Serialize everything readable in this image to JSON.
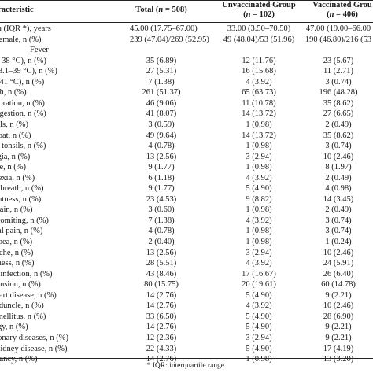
{
  "header": {
    "characteristic": "aracteristic",
    "total": "Total (n = 508)",
    "unvaccinated_line1": "Unvaccinated Group",
    "unvaccinated_line2": "(n = 102)",
    "vaccinated_line1": "Vaccinated Grou",
    "vaccinated_line2": "(n = 406)"
  },
  "rows": [
    {
      "label": "ian (IQR *), years",
      "total": "45.00 (17.75–67.00)",
      "unvacc": "33.00 (3.50–70.50)",
      "vacc": "47.00 (19.00–66.00"
    },
    {
      "label": "f female, n (%)",
      "total": "239 (47.04)/269 (52.95)",
      "unvacc": "49 (48.04)/53 (51.96)",
      "vacc": "190 (46.80)/216 (53"
    },
    {
      "label": "Fever",
      "total": "",
      "unvacc": "",
      "vacc": ""
    },
    {
      "label": ".3–38 °C), n (%)",
      "total": "35 (6.89)",
      "unvacc": "12 (11.76)",
      "vacc": "23 (5.67)"
    },
    {
      "label": "(38.1–39 °C), n (%)",
      "total": "27 (5.31)",
      "unvacc": "16 (15.68)",
      "vacc": "11 (2.71)"
    },
    {
      "label": "9–41 °C), n (%)",
      "total": "7 (1.38)",
      "unvacc": "4 (3.92)",
      "vacc": "3 (0.74)"
    },
    {
      "label": "ugh, n (%)",
      "total": "261 (51.37)",
      "unvacc": "65 (63.73)",
      "vacc": "196 (48.28)"
    },
    {
      "label": "ecoration, n (%)",
      "total": "46 (9.06)",
      "unvacc": "11 (10.78)",
      "vacc": "35 (8.62)"
    },
    {
      "label": "ongestion, n (%)",
      "total": "41 (8.07)",
      "unvacc": "14 (13.72)",
      "vacc": "27 (6.65)"
    },
    {
      "label": "hills, n (%)",
      "total": "3 (0.59)",
      "unvacc": "1 (0.98)",
      "vacc": "2 (0.49)"
    },
    {
      "label": "hroat, n (%)",
      "total": "49 (9.64)",
      "unvacc": "14 (13.72)",
      "vacc": "35 (8.62)"
    },
    {
      "label": "on tonsils, n (%)",
      "total": "4 (0.78)",
      "unvacc": "1 (0.98)",
      "vacc": "3 (0.74)"
    },
    {
      "label": "algia, n (%)",
      "total": "13 (2.56)",
      "unvacc": "3 (2.94)",
      "vacc": "10 (2.46)"
    },
    {
      "label": "gue, n (%)",
      "total": "9 (1.77)",
      "unvacc": "1 (0.98)",
      "vacc": "8 (1.97)"
    },
    {
      "label": "orexia, n (%)",
      "total": "6 (1.18)",
      "unvacc": "4 (3.92)",
      "vacc": "2 (0.49)"
    },
    {
      "label": "of breath, n (%)",
      "total": "9 (1.77)",
      "unvacc": "5 (4.90)",
      "vacc": "4 (0.98)"
    },
    {
      "label": "ightness, n (%)",
      "total": "23 (4.53)",
      "unvacc": "9 (8.82)",
      "vacc": "14 (3.45)"
    },
    {
      "label": "t pain, n (%)",
      "total": "3 (0.60)",
      "unvacc": "1 (0.98)",
      "vacc": "2 (0.49)"
    },
    {
      "label": "r vomiting, n (%)",
      "total": "7 (1.38)",
      "unvacc": "4 (3.92)",
      "vacc": "3 (0.74)"
    },
    {
      "label": "inal pain, n (%)",
      "total": "4 (0.78)",
      "unvacc": "1 (0.98)",
      "vacc": "3 (0.74)"
    },
    {
      "label": "rhoea, n (%)",
      "total": "2 (0.40)",
      "unvacc": "1 (0.98)",
      "vacc": "1 (0.24)"
    },
    {
      "label": "dache, n (%)",
      "total": "13 (2.56)",
      "unvacc": "3 (2.94)",
      "vacc": "10 (2.46)"
    },
    {
      "label": "ziness, n (%)",
      "total": "28 (5.51)",
      "unvacc": "4 (3.92)",
      "vacc": "24 (5.91)"
    },
    {
      "label": "ry infection, n (%)",
      "total": "43 (8.46)",
      "unvacc": "17 (16.67)",
      "vacc": "26 (6.40)"
    },
    {
      "label": "rtension, n (%)",
      "total": "80 (15.75)",
      "unvacc": "20 (19.61)",
      "vacc": "60 (14.78)"
    },
    {
      "label": "heart disease, n (%)",
      "total": "14 (2.76)",
      "unvacc": "5 (4.90)",
      "vacc": "9 (2.21)"
    },
    {
      "label": "peduncle, n (%)",
      "total": "14 (2.76)",
      "unvacc": "4 (3.92)",
      "vacc": "10 (2.46)"
    },
    {
      "label": "s mellitus, n (%)",
      "total": "33 (6.50)",
      "unvacc": "5 (4.90)",
      "vacc": "28 (6.90)"
    },
    {
      "label": "ergy, n (%)",
      "total": "14 (2.76)",
      "unvacc": "5 (4.90)",
      "vacc": "9 (2.21)"
    },
    {
      "label": "monary diseases, n (%)",
      "total": "12 (2.36)",
      "unvacc": "3 (2.94)",
      "vacc": "9 (2.21)"
    },
    {
      "label": "r kidney disease, n (%)",
      "total": "22 (4.33)",
      "unvacc": "5 (4.90)",
      "vacc": "17 (4.19)"
    },
    {
      "label": "gnancy, n (%)",
      "total": "14 (2.76)",
      "unvacc": "1 (0.98)",
      "vacc": "13 (3.20)"
    }
  ],
  "footnote": "* IQR: interquartile range."
}
